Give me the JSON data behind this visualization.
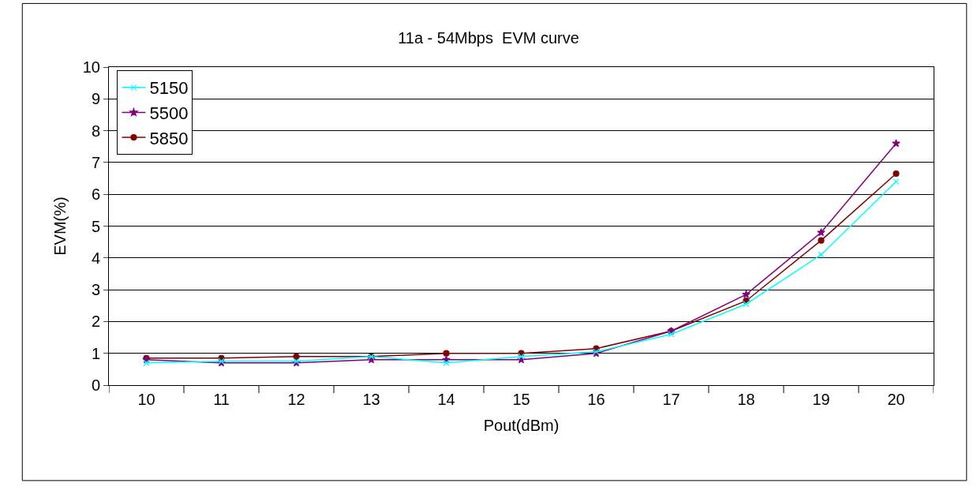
{
  "chart_data": {
    "type": "line",
    "title": "11a - 54Mbps  EVM curve",
    "xlabel": "Pout(dBm)",
    "ylabel": "EVM(%)",
    "categories": [
      "10",
      "11",
      "12",
      "13",
      "14",
      "15",
      "16",
      "17",
      "18",
      "19",
      "20"
    ],
    "series": [
      {
        "name": "5150",
        "color": "#00ffff",
        "marker": "cross",
        "values": [
          0.7,
          0.75,
          0.75,
          0.9,
          0.7,
          0.9,
          1.05,
          1.6,
          2.55,
          4.1,
          6.4
        ]
      },
      {
        "name": "5500",
        "color": "#800080",
        "marker": "star",
        "values": [
          0.8,
          0.7,
          0.7,
          0.8,
          0.8,
          0.8,
          1.0,
          1.7,
          2.85,
          4.8,
          7.6
        ]
      },
      {
        "name": "5850",
        "color": "#800000",
        "marker": "circle",
        "values": [
          0.85,
          0.85,
          0.9,
          0.9,
          1.0,
          1.0,
          1.15,
          1.7,
          2.65,
          4.55,
          6.65
        ]
      }
    ],
    "ylim": [
      0,
      10
    ],
    "yticks": [
      0,
      1,
      2,
      3,
      4,
      5,
      6,
      7,
      8,
      9,
      10
    ],
    "grid": "y",
    "legend": "top left",
    "line_style": "solid"
  }
}
